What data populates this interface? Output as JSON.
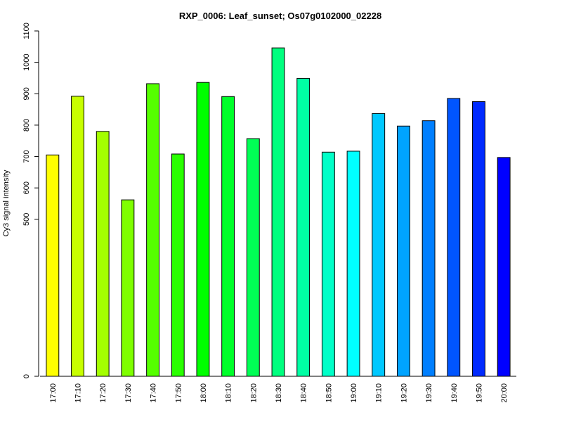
{
  "chart_data": {
    "type": "bar",
    "title": "RXP_0006: Leaf_sunset; Os07g0102000_02228",
    "xlabel": "",
    "ylabel": "Cy3 signal intensity",
    "ylim": [
      0,
      1100
    ],
    "yticks": [
      0,
      500,
      600,
      700,
      800,
      900,
      1000,
      1100
    ],
    "grid": false,
    "categories": [
      "17:00",
      "17:10",
      "17:20",
      "17:30",
      "17:40",
      "17:50",
      "18:00",
      "18:10",
      "18:20",
      "18:30",
      "18:40",
      "18:50",
      "19:00",
      "19:10",
      "19:20",
      "19:30",
      "19:40",
      "19:50",
      "20:00"
    ],
    "values": [
      705,
      892,
      780,
      562,
      932,
      708,
      936,
      891,
      757,
      1046,
      949,
      714,
      717,
      837,
      797,
      814,
      885,
      875,
      697
    ],
    "colors": [
      "#ffff00",
      "#c8ff00",
      "#a4ff00",
      "#7fff00",
      "#55ff00",
      "#2aff00",
      "#00ff00",
      "#00ff2a",
      "#00ff55",
      "#00ff7f",
      "#00ffa4",
      "#00ffc8",
      "#00ffff",
      "#00c8ff",
      "#00a4ff",
      "#007fff",
      "#0055ff",
      "#002aff",
      "#0000ff"
    ]
  }
}
